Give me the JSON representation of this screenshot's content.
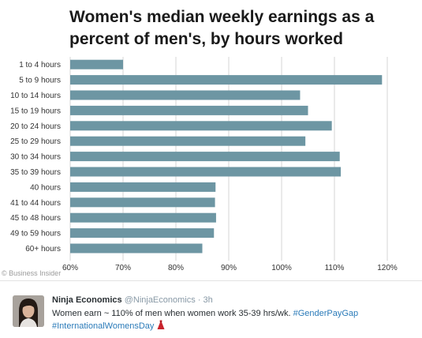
{
  "chart_data": {
    "type": "bar",
    "orientation": "horizontal",
    "title": "Women's median weekly earnings as a\npercent of men's, by hours worked",
    "categories": [
      "1 to 4 hours",
      "5 to 9 hours",
      "10 to 14 hours",
      "15 to 19 hours",
      "20 to 24 hours",
      "25 to 29 hours",
      "30 to 34 hours",
      "35 to 39 hours",
      "40 hours",
      "41 to 44 hours",
      "45 to 48 hours",
      "49 to 59 hours",
      "60+ hours"
    ],
    "values": [
      70.0,
      119.0,
      103.5,
      105.0,
      109.5,
      104.5,
      111.0,
      111.2,
      87.5,
      87.4,
      87.6,
      87.2,
      85.0
    ],
    "xlabel": "",
    "ylabel": "",
    "xlim": [
      60,
      120
    ],
    "x_ticks": [
      "60%",
      "70%",
      "80%",
      "90%",
      "100%",
      "110%",
      "120%"
    ],
    "grid": true,
    "bar_color": "#6d96a3"
  },
  "credit": {
    "icon": "copyright-icon",
    "symbol": "©",
    "text": "Business Insider"
  },
  "tweet": {
    "display_name": "Ninja Economics",
    "handle": "@NinjaEconomics",
    "separator": "·",
    "time": "3h",
    "text": "Women earn ~ 110% of men when women work 35-39 hrs/wk.",
    "hashtag1": "#GenderPayGap",
    "hashtag2": "#InternationalWomensDay",
    "emoji_icon": "dress-icon",
    "colors": {
      "name": "#292f33",
      "meta": "#8899a6",
      "link": "#2b7bb9"
    }
  }
}
